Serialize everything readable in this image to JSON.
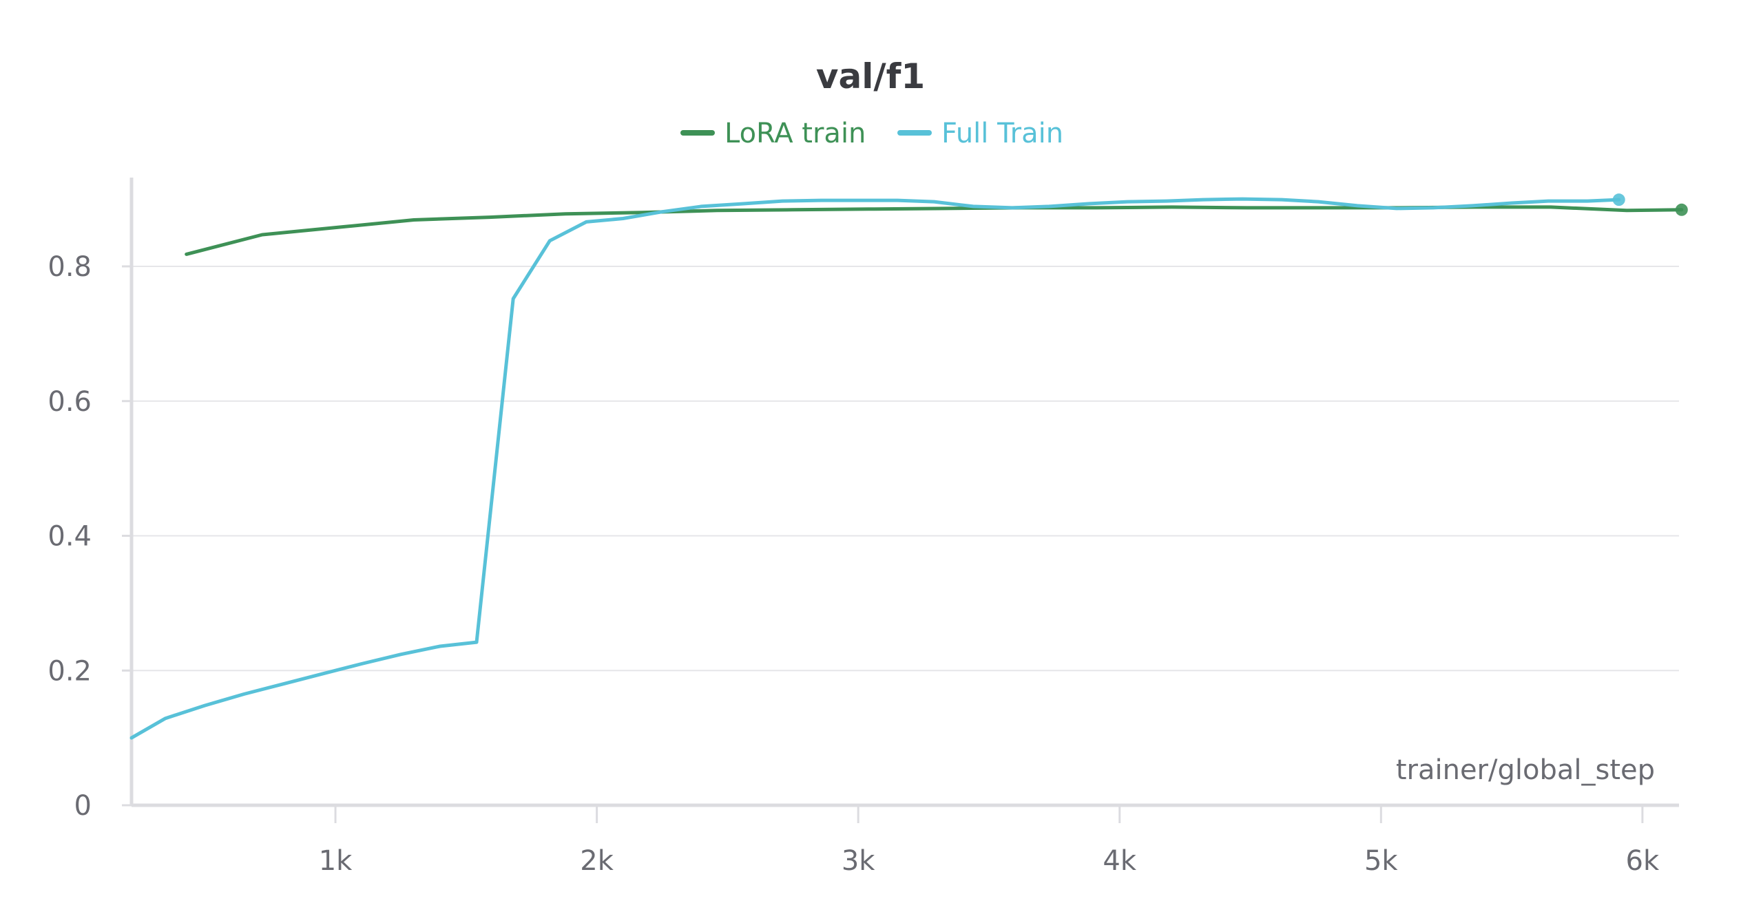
{
  "chart_data": {
    "type": "line",
    "title": "val/f1",
    "xlabel": "trainer/global_step",
    "ylabel": "",
    "xlim": [
      220,
      6140
    ],
    "ylim": [
      0,
      0.94
    ],
    "x_ticks": [
      1000,
      2000,
      3000,
      4000,
      5000,
      6000
    ],
    "x_tick_labels": [
      "1k",
      "2k",
      "3k",
      "4k",
      "5k",
      "6k"
    ],
    "y_ticks": [
      0,
      0.2,
      0.4,
      0.6,
      0.8
    ],
    "y_tick_labels": [
      "0",
      "0.2",
      "0.4",
      "0.6",
      "0.8"
    ],
    "grid": true,
    "legend_position": "top-center",
    "series": [
      {
        "name": "LoRA train",
        "color": "#3e9156",
        "x": [
          430,
          720,
          1010,
          1300,
          1590,
          1880,
          2170,
          2460,
          2750,
          3040,
          3330,
          3620,
          3910,
          4200,
          4490,
          4780,
          5070,
          5360,
          5650,
          5940,
          6150
        ],
        "y": [
          0.818,
          0.847,
          0.858,
          0.869,
          0.873,
          0.878,
          0.88,
          0.883,
          0.884,
          0.885,
          0.886,
          0.887,
          0.887,
          0.888,
          0.887,
          0.887,
          0.887,
          0.888,
          0.888,
          0.883,
          0.884
        ]
      },
      {
        "name": "Full Train",
        "color": "#58c1d8",
        "x": [
          220,
          350,
          500,
          650,
          800,
          950,
          1100,
          1250,
          1400,
          1540,
          1680,
          1820,
          1960,
          2100,
          2250,
          2400,
          2560,
          2710,
          2860,
          3000,
          3150,
          3290,
          3440,
          3590,
          3730,
          3880,
          4030,
          4180,
          4320,
          4470,
          4620,
          4760,
          4910,
          5060,
          5200,
          5350,
          5500,
          5640,
          5790,
          5910
        ],
        "y": [
          0.1,
          0.129,
          0.148,
          0.165,
          0.18,
          0.195,
          0.21,
          0.224,
          0.236,
          0.242,
          0.752,
          0.838,
          0.866,
          0.871,
          0.881,
          0.889,
          0.893,
          0.897,
          0.898,
          0.898,
          0.898,
          0.896,
          0.889,
          0.887,
          0.889,
          0.893,
          0.896,
          0.897,
          0.899,
          0.9,
          0.899,
          0.896,
          0.89,
          0.886,
          0.887,
          0.89,
          0.894,
          0.897,
          0.897,
          0.899
        ]
      }
    ]
  }
}
